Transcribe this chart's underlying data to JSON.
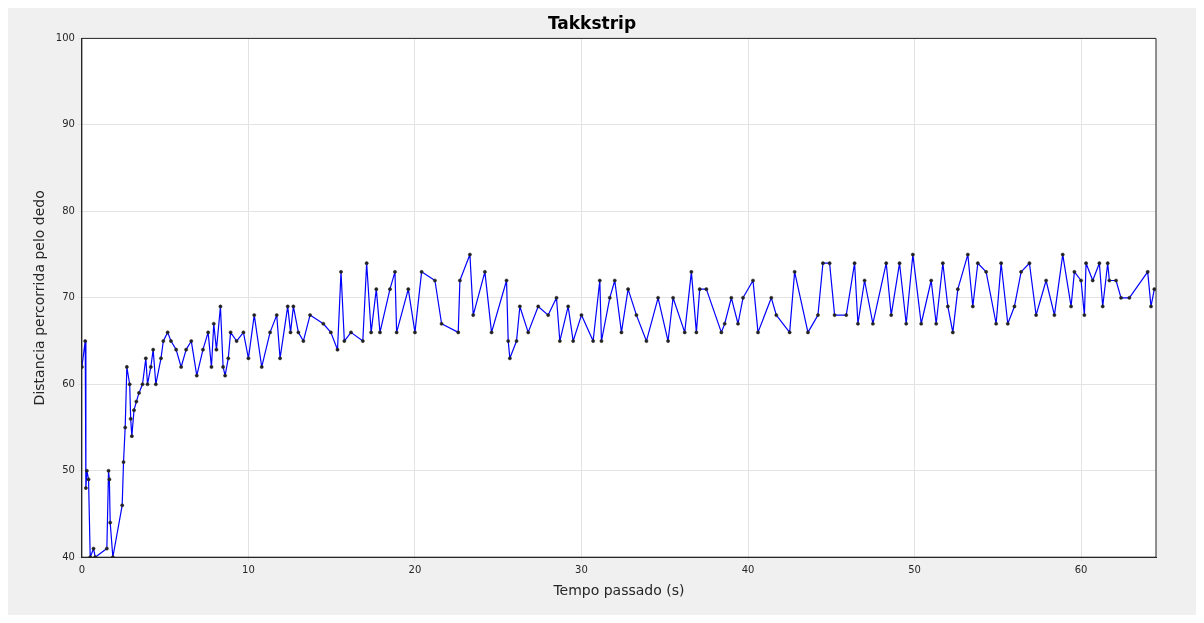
{
  "chart_data": {
    "type": "line",
    "title": "Takkstrip",
    "xlabel": "Tempo passado (s)",
    "ylabel": "Distancia percorrida pelo dedo",
    "xlim": [
      0,
      64.5
    ],
    "xticks": [
      0,
      10,
      20,
      30,
      40,
      50,
      60
    ],
    "ylim": [
      40,
      100
    ],
    "yticks": [
      40,
      50,
      60,
      70,
      80,
      90,
      100
    ],
    "grid": true,
    "marker": "circle",
    "line_style": "solid",
    "series": [
      {
        "color": "#0000ff",
        "x": [
          0,
          0.2,
          0.24,
          0.3,
          0.4,
          0.5,
          0.7,
          0.8,
          1.5,
          1.6,
          1.65,
          1.7,
          1.86,
          2.42,
          2.5,
          2.6,
          2.7,
          2.87,
          2.93,
          3.0,
          3.13,
          3.27,
          3.43,
          3.64,
          3.84,
          3.94,
          4.14,
          4.28,
          4.44,
          4.75,
          4.89,
          5.15,
          5.35,
          5.66,
          5.96,
          6.26,
          6.57,
          6.9,
          7.27,
          7.58,
          7.78,
          7.92,
          8.08,
          8.32,
          8.48,
          8.6,
          8.79,
          8.93,
          9.29,
          9.7,
          10.0,
          10.35,
          10.8,
          11.3,
          11.7,
          11.9,
          12.36,
          12.53,
          12.7,
          13.0,
          13.3,
          13.7,
          14.5,
          14.95,
          15.35,
          15.56,
          15.76,
          16.16,
          16.87,
          17.1,
          17.37,
          17.68,
          17.9,
          18.5,
          18.8,
          18.9,
          19.6,
          20.0,
          20.4,
          21.2,
          21.6,
          22.6,
          22.7,
          23.3,
          23.5,
          24.2,
          24.6,
          25.5,
          25.6,
          25.7,
          26.1,
          26.3,
          26.8,
          27.4,
          28.0,
          28.5,
          28.7,
          29.2,
          29.5,
          30.0,
          30.7,
          31.1,
          31.2,
          31.7,
          32.0,
          32.4,
          32.8,
          33.3,
          33.9,
          34.6,
          35.2,
          35.5,
          36.2,
          36.6,
          36.9,
          37.1,
          37.5,
          38.4,
          38.6,
          39.0,
          39.4,
          39.7,
          40.3,
          40.6,
          41.4,
          41.7,
          42.5,
          42.8,
          43.6,
          44.2,
          44.5,
          44.9,
          45.2,
          45.9,
          46.4,
          46.6,
          47.0,
          47.5,
          48.3,
          48.6,
          49.1,
          49.5,
          49.9,
          50.4,
          51.0,
          51.3,
          51.7,
          52.0,
          52.3,
          52.6,
          53.2,
          53.5,
          53.8,
          54.3,
          54.9,
          55.2,
          55.6,
          56.0,
          56.4,
          56.9,
          57.3,
          57.9,
          58.4,
          58.9,
          59.4,
          59.6,
          60.0,
          60.2,
          60.3,
          60.7,
          61.1,
          61.3,
          61.6,
          61.7,
          62.1,
          62.4,
          62.9,
          64.0,
          64.2,
          64.4
        ],
        "values": [
          62,
          65,
          48,
          50,
          49,
          40,
          41,
          40,
          41,
          50,
          49,
          44,
          40,
          46,
          51,
          55,
          62,
          60,
          56,
          54,
          57,
          58,
          59,
          60,
          63,
          60,
          62,
          64,
          60,
          63,
          65,
          66,
          65,
          64,
          62,
          64,
          65,
          61,
          64,
          66,
          62,
          67,
          64,
          69,
          62,
          61,
          63,
          66,
          65,
          66,
          63,
          68,
          62,
          66,
          68,
          63,
          69,
          66,
          69,
          66,
          65,
          68,
          67,
          66,
          64,
          73,
          65,
          66,
          65,
          74,
          66,
          71,
          66,
          71,
          73,
          66,
          71,
          66,
          73,
          72,
          67,
          66,
          72,
          75,
          68,
          73,
          66,
          72,
          65,
          63,
          65,
          69,
          66,
          69,
          68,
          70,
          65,
          69,
          65,
          68,
          65,
          72,
          65,
          70,
          72,
          66,
          71,
          68,
          65,
          70,
          65,
          70,
          66,
          73,
          66,
          71,
          71,
          66,
          67,
          70,
          67,
          70,
          72,
          66,
          70,
          68,
          66,
          73,
          66,
          68,
          74,
          74,
          68,
          68,
          74,
          67,
          72,
          67,
          74,
          68,
          74,
          67,
          75,
          67,
          72,
          67,
          74,
          69,
          66,
          71,
          75,
          69,
          74,
          73,
          67,
          74,
          67,
          69,
          73,
          74,
          68,
          72,
          68,
          75,
          69,
          73,
          72,
          68,
          74,
          72,
          74,
          69,
          74,
          72,
          72,
          70,
          70,
          73,
          69,
          71
        ]
      }
    ]
  }
}
